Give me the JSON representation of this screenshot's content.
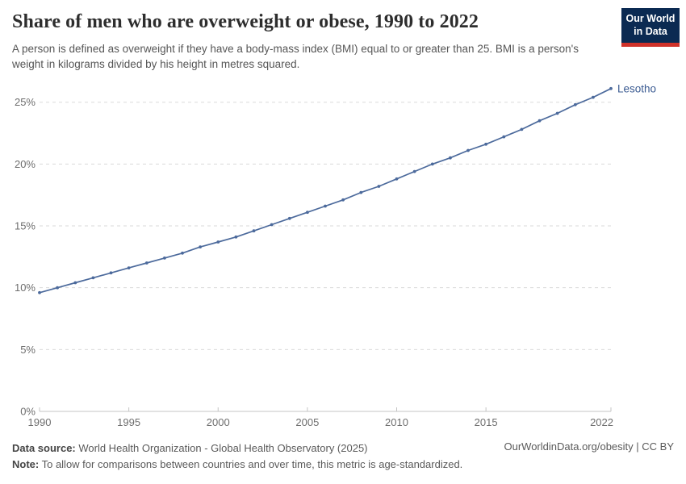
{
  "header": {
    "title": "Share of men who are overweight or obese, 1990 to 2022",
    "subtitle": "A person is defined as overweight if they have a body-mass index (BMI) equal to or greater than 25. BMI is a person's weight in kilograms divided by his height in metres squared.",
    "logo": {
      "line1": "Our World",
      "line2": "in Data",
      "bg_color": "#0b2a52",
      "bar_color": "#cf3129"
    }
  },
  "chart_data": {
    "type": "line",
    "title": "Share of men who are overweight or obese, 1990 to 2022",
    "xlabel": "",
    "ylabel": "",
    "xlim": [
      1990,
      2022
    ],
    "ylim": [
      0,
      27.1
    ],
    "grid": "horizontal-dashed",
    "legend": "inline-end-label",
    "xticks": [
      {
        "label": "1990",
        "year": 1990
      },
      {
        "label": "1995",
        "year": 1995
      },
      {
        "label": "2000",
        "year": 2000
      },
      {
        "label": "2005",
        "year": 2005
      },
      {
        "label": "2010",
        "year": 2010
      },
      {
        "label": "2015",
        "year": 2015
      },
      {
        "label": "2022",
        "year": 2022
      }
    ],
    "yticks": [
      {
        "label": "0%",
        "value": 0
      },
      {
        "label": "5%",
        "value": 5
      },
      {
        "label": "10%",
        "value": 10
      },
      {
        "label": "15%",
        "value": 15
      },
      {
        "label": "20%",
        "value": 20
      },
      {
        "label": "25%",
        "value": 25
      }
    ],
    "series": [
      {
        "name": "Lesotho",
        "color": "#4c6a9c",
        "label_color": "#3b5b92",
        "points": [
          [
            1990,
            9.6
          ],
          [
            1991,
            10.0
          ],
          [
            1992,
            10.4
          ],
          [
            1993,
            10.8
          ],
          [
            1994,
            11.2
          ],
          [
            1995,
            11.6
          ],
          [
            1996,
            12.0
          ],
          [
            1997,
            12.4
          ],
          [
            1998,
            12.8
          ],
          [
            1999,
            13.3
          ],
          [
            2000,
            13.7
          ],
          [
            2001,
            14.1
          ],
          [
            2002,
            14.6
          ],
          [
            2003,
            15.1
          ],
          [
            2004,
            15.6
          ],
          [
            2005,
            16.1
          ],
          [
            2006,
            16.6
          ],
          [
            2007,
            17.1
          ],
          [
            2008,
            17.7
          ],
          [
            2009,
            18.2
          ],
          [
            2010,
            18.8
          ],
          [
            2011,
            19.4
          ],
          [
            2012,
            20.0
          ],
          [
            2013,
            20.5
          ],
          [
            2014,
            21.1
          ],
          [
            2015,
            21.6
          ],
          [
            2016,
            22.2
          ],
          [
            2017,
            22.8
          ],
          [
            2018,
            23.5
          ],
          [
            2019,
            24.1
          ],
          [
            2020,
            24.8
          ],
          [
            2021,
            25.4
          ],
          [
            2022,
            26.1
          ]
        ]
      }
    ],
    "style": {
      "gridline_color": "#dadada",
      "axis_color": "#c4c4c4",
      "tick_text_color": "#6e6e6e"
    }
  },
  "footer": {
    "source_label": "Data source:",
    "source_text": " World Health Organization - Global Health Observatory (2025)",
    "note_label": "Note:",
    "note_text": " To allow for comparisons between countries and over time, this metric is age-standardized.",
    "link_text": "OurWorldinData.org/obesity | CC BY"
  }
}
